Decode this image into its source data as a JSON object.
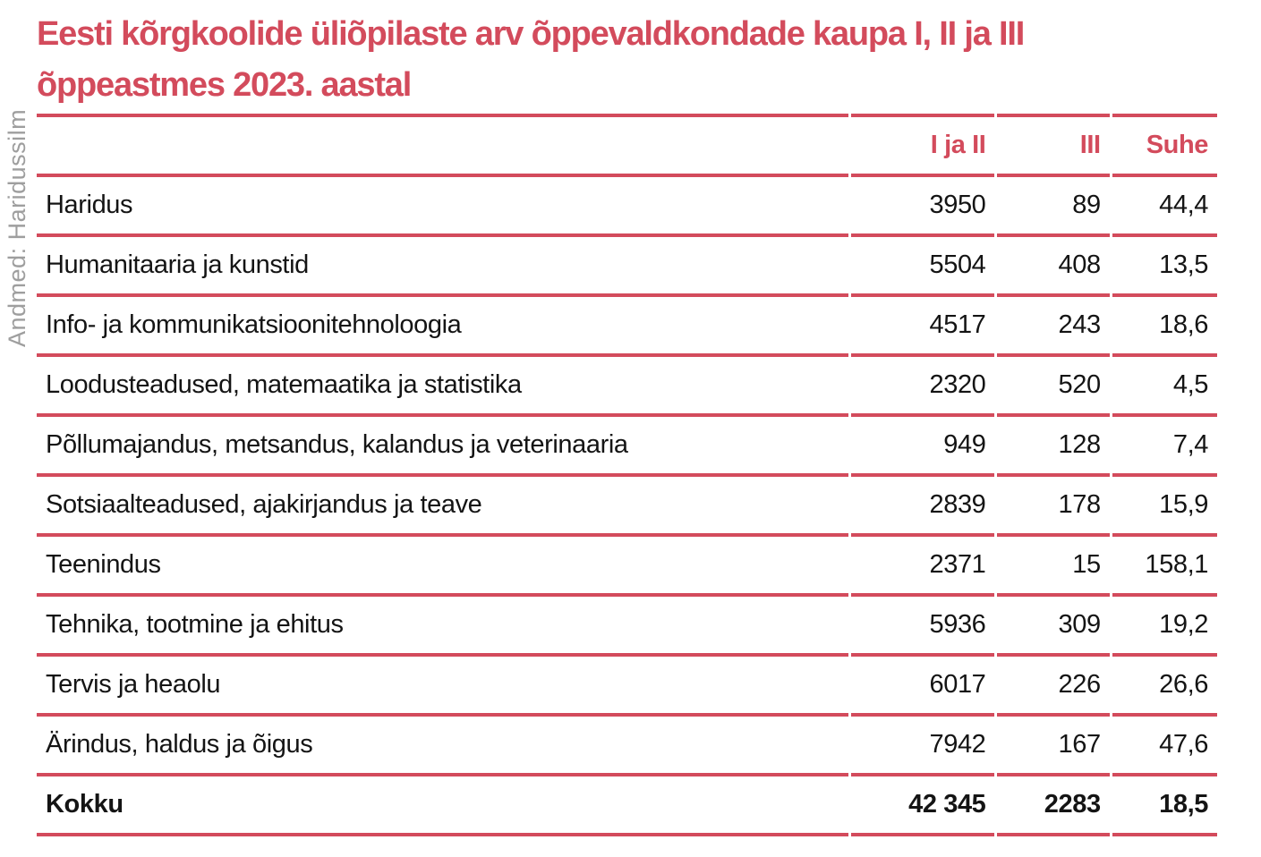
{
  "title": {
    "line1": "Eesti kõrgkoolide üliõpilaste arv õppevaldkondade kaupa I, II ja III",
    "line2": "õppeastmes 2023. aastal"
  },
  "credit": "Andmed: Haridussilm",
  "colors": {
    "accent_red": "#d34b5c",
    "text_black": "#141414",
    "credit_gray": "#9e9e9e",
    "background": "#ffffff"
  },
  "table": {
    "columns": [
      "",
      "I ja II",
      "III",
      "Suhe"
    ],
    "rows": [
      {
        "label": "Haridus",
        "i_ja_ii": "3950",
        "iii": "89",
        "suhe": "44,4"
      },
      {
        "label": "Humanitaaria ja kunstid",
        "i_ja_ii": "5504",
        "iii": "408",
        "suhe": "13,5"
      },
      {
        "label": "Info- ja kommunikatsioonitehnoloogia",
        "i_ja_ii": "4517",
        "iii": "243",
        "suhe": "18,6"
      },
      {
        "label": "Loodusteadused, matemaatika ja statistika",
        "i_ja_ii": "2320",
        "iii": "520",
        "suhe": "4,5"
      },
      {
        "label": "Põllumajandus, metsandus, kalandus ja veterinaaria",
        "i_ja_ii": "949",
        "iii": "128",
        "suhe": "7,4"
      },
      {
        "label": "Sotsiaalteadused, ajakirjandus ja teave",
        "i_ja_ii": "2839",
        "iii": "178",
        "suhe": "15,9"
      },
      {
        "label": "Teenindus",
        "i_ja_ii": "2371",
        "iii": "15",
        "suhe": "158,1"
      },
      {
        "label": "Tehnika, tootmine ja ehitus",
        "i_ja_ii": "5936",
        "iii": "309",
        "suhe": "19,2"
      },
      {
        "label": "Tervis ja heaolu",
        "i_ja_ii": "6017",
        "iii": "226",
        "suhe": "26,6"
      },
      {
        "label": "Ärindus, haldus ja õigus",
        "i_ja_ii": "7942",
        "iii": "167",
        "suhe": "47,6"
      }
    ],
    "total": {
      "label": "Kokku",
      "i_ja_ii": "42 345",
      "iii": "2283",
      "suhe": "18,5"
    }
  },
  "chart_data": {
    "type": "table",
    "title": "Eesti kõrgkoolide üliõpilaste arv õppevaldkondade kaupa I, II ja III õppeastmes 2023. aastal",
    "source": "Andmed: Haridussilm",
    "columns": [
      "",
      "I ja II",
      "III",
      "Suhe"
    ],
    "rows": [
      [
        "Haridus",
        3950,
        89,
        44.4
      ],
      [
        "Humanitaaria ja kunstid",
        5504,
        408,
        13.5
      ],
      [
        "Info- ja kommunikatsioonitehnoloogia",
        4517,
        243,
        18.6
      ],
      [
        "Loodusteadused, matemaatika ja statistika",
        2320,
        520,
        4.5
      ],
      [
        "Põllumajandus, metsandus, kalandus ja veterinaaria",
        949,
        128,
        7.4
      ],
      [
        "Sotsiaalteadused, ajakirjandus ja teave",
        2839,
        178,
        15.9
      ],
      [
        "Teenindus",
        2371,
        15,
        158.1
      ],
      [
        "Tehnika, tootmine ja ehitus",
        5936,
        309,
        19.2
      ],
      [
        "Tervis ja heaolu",
        6017,
        226,
        26.6
      ],
      [
        "Ärindus, haldus ja õigus",
        7942,
        167,
        47.6
      ]
    ],
    "total": [
      "Kokku",
      42345,
      2283,
      18.5
    ]
  }
}
